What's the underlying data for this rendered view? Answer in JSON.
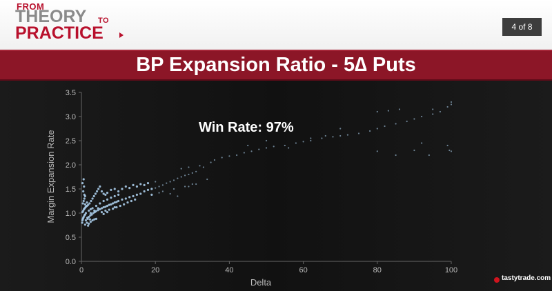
{
  "header": {
    "logo": {
      "from": "FROM",
      "theory": "THEORY",
      "to": "TO",
      "practice": "PRACTICE"
    },
    "page_indicator": "4 of 8"
  },
  "title_bar": {
    "title": "BP Expansion Ratio - 5∆ Puts"
  },
  "footer": {
    "brand": "tastytrade.com"
  },
  "colors": {
    "accent": "#8c1627",
    "points": "#a8cbe8",
    "background": "#141414"
  },
  "chart_data": {
    "type": "scatter",
    "title": "",
    "xlabel": "Delta",
    "ylabel": "Margin Expansion Rate",
    "xlim": [
      0,
      100
    ],
    "ylim": [
      0,
      3.5
    ],
    "xticks": [
      0,
      20,
      40,
      60,
      80,
      100
    ],
    "yticks": [
      0.0,
      0.5,
      1.0,
      1.5,
      2.0,
      2.5,
      3.0,
      3.5
    ],
    "grid": false,
    "annotation": "Win Rate: 97%",
    "series": [
      {
        "color": "#a8cbe8",
        "points": [
          [
            0.2,
            0.8
          ],
          [
            0.3,
            0.85
          ],
          [
            0.4,
            0.88
          ],
          [
            0.5,
            0.9
          ],
          [
            0.6,
            0.92
          ],
          [
            0.8,
            0.95
          ],
          [
            1.0,
            0.97
          ],
          [
            1.2,
            1.0
          ],
          [
            0.3,
            1.02
          ],
          [
            0.5,
            1.05
          ],
          [
            0.7,
            1.08
          ],
          [
            0.9,
            1.1
          ],
          [
            1.1,
            1.12
          ],
          [
            1.3,
            1.14
          ],
          [
            1.5,
            1.15
          ],
          [
            1.8,
            1.17
          ],
          [
            0.4,
            1.2
          ],
          [
            0.6,
            1.25
          ],
          [
            0.8,
            1.3
          ],
          [
            1.0,
            1.35
          ],
          [
            0.5,
            1.45
          ],
          [
            0.7,
            1.55
          ],
          [
            0.3,
            1.62
          ],
          [
            0.6,
            1.7
          ],
          [
            1.6,
            0.9
          ],
          [
            2.0,
            0.92
          ],
          [
            2.4,
            0.95
          ],
          [
            2.8,
            0.97
          ],
          [
            3.2,
            1.0
          ],
          [
            3.6,
            1.02
          ],
          [
            4.0,
            1.04
          ],
          [
            4.5,
            1.06
          ],
          [
            5.0,
            1.08
          ],
          [
            5.5,
            1.1
          ],
          [
            6.0,
            1.12
          ],
          [
            6.5,
            1.13
          ],
          [
            7.0,
            1.15
          ],
          [
            7.5,
            1.17
          ],
          [
            8.0,
            1.18
          ],
          [
            8.5,
            1.2
          ],
          [
            9.0,
            1.22
          ],
          [
            9.5,
            1.23
          ],
          [
            10.0,
            1.25
          ],
          [
            11.0,
            1.28
          ],
          [
            12.0,
            1.3
          ],
          [
            13.0,
            1.33
          ],
          [
            14.0,
            1.35
          ],
          [
            15.0,
            1.38
          ],
          [
            1.5,
            0.8
          ],
          [
            2.0,
            0.78
          ],
          [
            2.5,
            0.82
          ],
          [
            3.0,
            0.85
          ],
          [
            3.5,
            0.87
          ],
          [
            4.0,
            0.88
          ],
          [
            1.0,
            0.76
          ],
          [
            1.8,
            0.74
          ],
          [
            2.2,
            1.2
          ],
          [
            2.6,
            1.25
          ],
          [
            3.0,
            1.3
          ],
          [
            3.4,
            1.35
          ],
          [
            3.8,
            1.4
          ],
          [
            4.2,
            1.45
          ],
          [
            4.6,
            1.5
          ],
          [
            5.0,
            1.55
          ],
          [
            5.5,
            1.45
          ],
          [
            6.0,
            1.4
          ],
          [
            6.5,
            1.38
          ],
          [
            7.0,
            1.42
          ],
          [
            8.0,
            1.48
          ],
          [
            9.0,
            1.5
          ],
          [
            10.0,
            1.45
          ],
          [
            11.0,
            1.5
          ],
          [
            12.0,
            1.55
          ],
          [
            13.0,
            1.52
          ],
          [
            14.0,
            1.58
          ],
          [
            15.0,
            1.55
          ],
          [
            16.0,
            1.6
          ],
          [
            17.0,
            1.58
          ],
          [
            18.0,
            1.62
          ],
          [
            20.0,
            1.65
          ],
          [
            3.0,
            1.1
          ],
          [
            4.0,
            1.15
          ],
          [
            5.0,
            1.2
          ],
          [
            6.0,
            1.25
          ],
          [
            7.0,
            1.28
          ],
          [
            8.0,
            1.32
          ],
          [
            9.0,
            1.35
          ],
          [
            10.0,
            1.38
          ],
          [
            2.5,
            1.0
          ],
          [
            3.5,
            1.05
          ],
          [
            4.5,
            1.1
          ],
          [
            5.5,
            1.02
          ],
          [
            6.5,
            1.05
          ],
          [
            7.5,
            1.07
          ],
          [
            8.5,
            1.09
          ],
          [
            9.5,
            1.12
          ],
          [
            16.0,
            1.4
          ],
          [
            17.0,
            1.45
          ],
          [
            18.0,
            1.48
          ],
          [
            19.0,
            1.5
          ],
          [
            20.0,
            1.52
          ],
          [
            21.0,
            1.55
          ],
          [
            22.0,
            1.58
          ],
          [
            23.0,
            1.62
          ],
          [
            24.0,
            1.65
          ],
          [
            25.0,
            1.68
          ],
          [
            26.0,
            1.72
          ],
          [
            27.0,
            1.75
          ],
          [
            28.0,
            1.78
          ],
          [
            29.0,
            1.8
          ],
          [
            30.0,
            1.83
          ],
          [
            31.0,
            1.86
          ],
          [
            25.0,
            1.5
          ],
          [
            28.0,
            1.55
          ],
          [
            30.0,
            1.6
          ],
          [
            27.0,
            1.92
          ],
          [
            29.0,
            1.95
          ],
          [
            32.0,
            1.98
          ],
          [
            35.0,
            2.05
          ],
          [
            38.0,
            2.15
          ],
          [
            40.0,
            2.18
          ],
          [
            42.0,
            2.2
          ],
          [
            44.0,
            2.25
          ],
          [
            46.0,
            2.28
          ],
          [
            48.0,
            2.32
          ],
          [
            50.0,
            2.35
          ],
          [
            52.0,
            2.38
          ],
          [
            55.0,
            2.4
          ],
          [
            58.0,
            2.45
          ],
          [
            60.0,
            2.48
          ],
          [
            62.0,
            2.5
          ],
          [
            65.0,
            2.55
          ],
          [
            68.0,
            2.58
          ],
          [
            70.0,
            2.6
          ],
          [
            72.0,
            2.62
          ],
          [
            75.0,
            2.65
          ],
          [
            78.0,
            2.7
          ],
          [
            80.0,
            2.75
          ],
          [
            82.0,
            2.8
          ],
          [
            85.0,
            2.85
          ],
          [
            88.0,
            2.9
          ],
          [
            90.0,
            2.95
          ],
          [
            92.0,
            3.0
          ],
          [
            95.0,
            3.05
          ],
          [
            97.0,
            3.1
          ],
          [
            99.0,
            3.2
          ],
          [
            100.0,
            3.3
          ],
          [
            100.0,
            3.25
          ],
          [
            99.5,
            2.3
          ],
          [
            100.0,
            2.28
          ],
          [
            99.0,
            2.4
          ],
          [
            95.0,
            3.15
          ],
          [
            86.0,
            3.15
          ],
          [
            83.0,
            3.12
          ],
          [
            80.0,
            3.1
          ],
          [
            90.0,
            2.3
          ],
          [
            92.0,
            2.45
          ],
          [
            94.0,
            2.2
          ],
          [
            85.0,
            2.2
          ],
          [
            80.0,
            2.28
          ],
          [
            70.0,
            2.75
          ],
          [
            66.0,
            2.6
          ],
          [
            62.0,
            2.55
          ],
          [
            56.0,
            2.35
          ],
          [
            50.0,
            2.5
          ],
          [
            45.0,
            2.4
          ],
          [
            36.0,
            2.1
          ],
          [
            33.0,
            1.95
          ],
          [
            22.0,
            1.45
          ],
          [
            24.0,
            1.4
          ],
          [
            26.0,
            1.35
          ],
          [
            34.0,
            1.7
          ],
          [
            31.0,
            1.6
          ],
          [
            29.0,
            1.55
          ],
          [
            19.0,
            1.38
          ],
          [
            21.0,
            1.42
          ],
          [
            1.0,
            1.18
          ],
          [
            1.5,
            1.22
          ],
          [
            2.0,
            1.05
          ],
          [
            2.5,
            1.08
          ],
          [
            1.2,
            0.85
          ],
          [
            1.7,
            0.88
          ],
          [
            2.3,
            0.87
          ],
          [
            0.8,
            1.38
          ],
          [
            11.5,
            1.18
          ],
          [
            12.5,
            1.22
          ],
          [
            13.5,
            1.25
          ],
          [
            14.5,
            1.28
          ],
          [
            10.5,
            1.15
          ],
          [
            9.0,
            1.12
          ],
          [
            7.0,
            1.02
          ],
          [
            6.0,
            0.98
          ]
        ]
      }
    ]
  }
}
